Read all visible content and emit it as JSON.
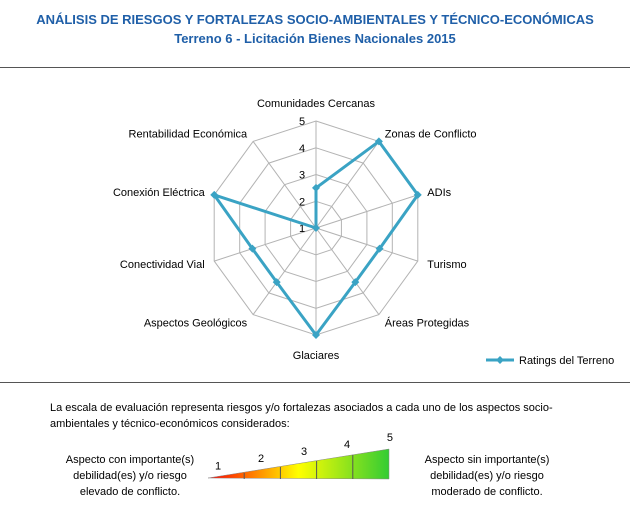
{
  "header": {
    "title": "ANÁLISIS DE RIESGOS Y FORTALEZAS SOCIO-AMBIENTALES Y TÉCNICO-ECONÓMICAS",
    "subtitle": "Terreno 6 - Licitación Bienes Nacionales 2015"
  },
  "chart_data": {
    "type": "radar",
    "categories": [
      "Comunidades Cercanas",
      "Zonas de Conflicto",
      "ADIs",
      "Turismo",
      "Áreas Protegidas",
      "Glaciares",
      "Aspectos Geológicos",
      "Conectividad Vial",
      "Conexión Eléctrica",
      "Rentabilidad Económica"
    ],
    "series": [
      {
        "name": "Ratings del Terreno",
        "values": [
          2.5,
          5,
          5,
          3.5,
          3.5,
          5,
          3.5,
          3.5,
          5,
          1
        ]
      }
    ],
    "rmin": 1,
    "rmax": 5,
    "ticks": [
      "1",
      "2",
      "3",
      "4",
      "5"
    ],
    "grid": true,
    "legend_position": "bottom-right",
    "series_color": "#3aa3c4"
  },
  "legend": {
    "label": "Ratings del Terreno"
  },
  "note": {
    "line1": "La escala  de evaluación representa riesgos y/o fortalezas asociados a cada uno de los aspectos socio-",
    "line2": "ambientales y técnico-económicos considerados:"
  },
  "scale": {
    "left_lines": [
      "Aspecto con importante(s)",
      "debilidad(es) y/o riesgo",
      "elevado de conflicto."
    ],
    "right_lines": [
      "Aspecto sin importante(s)",
      "debilidad(es) y/o riesgo",
      "moderado de conflicto."
    ],
    "numbers": [
      "1",
      "2",
      "3",
      "4",
      "5"
    ],
    "gradient_colors": [
      "#ff0000",
      "#ffff00",
      "#33cc33"
    ]
  }
}
